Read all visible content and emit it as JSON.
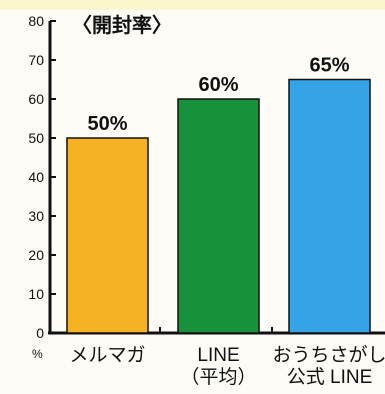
{
  "chart_data": {
    "type": "bar",
    "title": "〈開封率〉",
    "ylabel": "%",
    "ylim": [
      0,
      80
    ],
    "yticks": [
      0,
      10,
      20,
      30,
      40,
      50,
      60,
      70,
      80
    ],
    "categories": [
      [
        "メルマガ"
      ],
      [
        "LINE",
        "（平均）"
      ],
      [
        "おうちさがし",
        "公式 LINE"
      ]
    ],
    "values": [
      50,
      60,
      65
    ],
    "data_labels": [
      "50%",
      "60%",
      "65%"
    ],
    "colors": [
      "#f5b324",
      "#17913a",
      "#35a4e6"
    ],
    "grid": false
  }
}
